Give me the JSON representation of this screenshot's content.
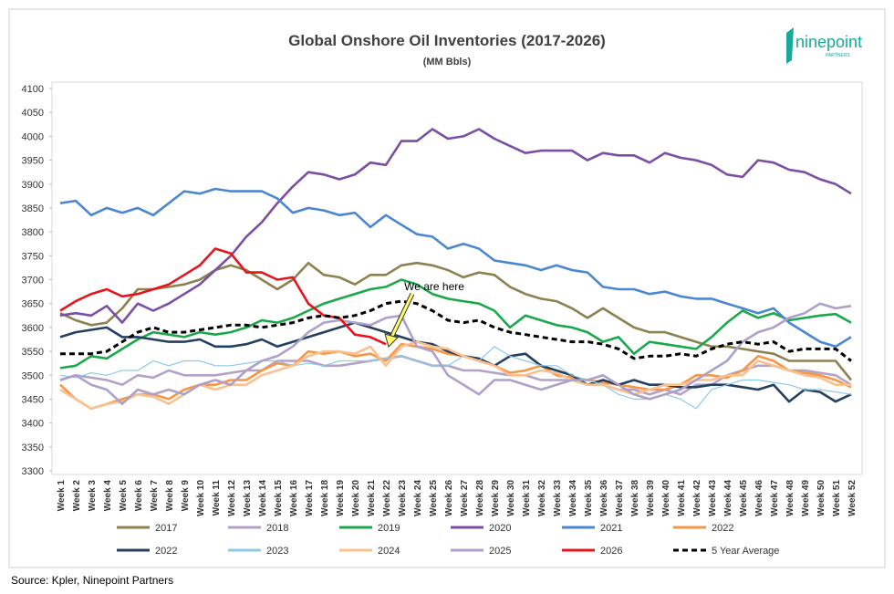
{
  "chart_data": {
    "type": "line",
    "title": "Global Onshore Oil Inventories (2017-2026)",
    "subtitle": "(MM Bbls)",
    "source": "Source: Kpler, Ninepoint Partners",
    "logo": {
      "name": "ninepoint",
      "tagline": "PARTNERS"
    },
    "annotations": [
      {
        "text": "We are here"
      }
    ],
    "grid": false,
    "legend": "bottom",
    "ylim": [
      3300,
      4100
    ],
    "yticks": [
      3300,
      3350,
      3400,
      3450,
      3500,
      3550,
      3600,
      3650,
      3700,
      3750,
      3800,
      3850,
      3900,
      3950,
      4000,
      4050,
      4100
    ],
    "categories": [
      "Week 1",
      "Week 2",
      "Week 3",
      "Week 4",
      "Week 5",
      "Week 6",
      "Week 7",
      "Week 8",
      "Week 9",
      "Week 10",
      "Week 11",
      "Week 12",
      "Week 13",
      "Week 14",
      "Week 15",
      "Week 16",
      "Week 17",
      "Week 18",
      "Week 19",
      "Week 20",
      "Week 21",
      "Week 22",
      "Week 23",
      "Week 24",
      "Week 25",
      "Week 26",
      "Week 27",
      "Week 28",
      "Week 29",
      "Week 30",
      "Week 31",
      "Week 32",
      "Week 33",
      "Week 34",
      "Week 35",
      "Week 36",
      "Week 37",
      "Week 38",
      "Week 39",
      "Week 40",
      "Week 41",
      "Week 42",
      "Week 43",
      "Week 44",
      "Week 45",
      "Week 46",
      "Week 47",
      "Week 48",
      "Week 49",
      "Week 50",
      "Week 51",
      "Week 52"
    ],
    "series": [
      {
        "name": "2017",
        "color": "#8c8250",
        "values": [
          3630,
          3615,
          3605,
          3610,
          3640,
          3680,
          3680,
          3685,
          3690,
          3700,
          3720,
          3730,
          3720,
          3700,
          3680,
          3700,
          3735,
          3710,
          3705,
          3690,
          3710,
          3710,
          3730,
          3735,
          3730,
          3720,
          3705,
          3715,
          3710,
          3685,
          3670,
          3660,
          3655,
          3640,
          3620,
          3640,
          3620,
          3600,
          3590,
          3590,
          3580,
          3570,
          3560,
          3560,
          3555,
          3550,
          3545,
          3530,
          3530,
          3530,
          3530,
          3490
        ]
      },
      {
        "name": "2018",
        "color": "#b3a2c7",
        "values": [
          3490,
          3500,
          3495,
          3490,
          3480,
          3500,
          3495,
          3510,
          3500,
          3500,
          3500,
          3505,
          3510,
          3510,
          3530,
          3530,
          3530,
          3520,
          3520,
          3525,
          3530,
          3535,
          3540,
          3530,
          3520,
          3520,
          3510,
          3510,
          3505,
          3500,
          3500,
          3490,
          3490,
          3490,
          3480,
          3480,
          3470,
          3470,
          3460,
          3470,
          3460,
          3480,
          3480,
          3500,
          3510,
          3520,
          3520,
          3510,
          3510,
          3505,
          3500,
          3480
        ]
      },
      {
        "name": "2019",
        "color": "#1aa84a",
        "values": [
          3515,
          3520,
          3540,
          3535,
          3555,
          3575,
          3590,
          3585,
          3580,
          3590,
          3585,
          3590,
          3600,
          3615,
          3610,
          3620,
          3635,
          3650,
          3660,
          3670,
          3680,
          3685,
          3700,
          3690,
          3670,
          3660,
          3655,
          3650,
          3635,
          3600,
          3625,
          3615,
          3605,
          3600,
          3590,
          3570,
          3580,
          3545,
          3570,
          3565,
          3560,
          3555,
          3580,
          3610,
          3635,
          3620,
          3630,
          3615,
          3620,
          3625,
          3628,
          3610
        ]
      },
      {
        "name": "2020",
        "color": "#7a4ea3",
        "values": [
          3625,
          3630,
          3625,
          3645,
          3610,
          3650,
          3635,
          3650,
          3670,
          3690,
          3720,
          3750,
          3790,
          3820,
          3860,
          3895,
          3925,
          3920,
          3910,
          3920,
          3945,
          3940,
          3990,
          3990,
          4015,
          3995,
          4000,
          4015,
          3995,
          3980,
          3965,
          3970,
          3970,
          3970,
          3950,
          3965,
          3960,
          3960,
          3945,
          3965,
          3955,
          3950,
          3940,
          3920,
          3915,
          3950,
          3945,
          3930,
          3925,
          3910,
          3900,
          3880
        ]
      },
      {
        "name": "2021",
        "color": "#4a87d0",
        "values": [
          3860,
          3865,
          3835,
          3850,
          3840,
          3850,
          3835,
          3860,
          3885,
          3880,
          3890,
          3885,
          3885,
          3885,
          3870,
          3840,
          3850,
          3845,
          3835,
          3840,
          3810,
          3835,
          3815,
          3795,
          3790,
          3765,
          3775,
          3765,
          3740,
          3735,
          3730,
          3720,
          3730,
          3720,
          3715,
          3685,
          3680,
          3680,
          3670,
          3675,
          3665,
          3660,
          3660,
          3650,
          3640,
          3630,
          3640,
          3610,
          3590,
          3570,
          3560,
          3580
        ]
      },
      {
        "name": "2022",
        "color": "#f79646",
        "values": [
          3480,
          3450,
          3430,
          3440,
          3450,
          3460,
          3460,
          3450,
          3470,
          3480,
          3480,
          3490,
          3490,
          3510,
          3525,
          3520,
          3550,
          3545,
          3550,
          3540,
          3545,
          3530,
          3565,
          3560,
          3555,
          3545,
          3540,
          3530,
          3520,
          3505,
          3510,
          3520,
          3500,
          3495,
          3490,
          3485,
          3480,
          3475,
          3470,
          3470,
          3480,
          3500,
          3500,
          3495,
          3510,
          3540,
          3530,
          3510,
          3505,
          3500,
          3490,
          3475
        ]
      },
      {
        "name": "2022",
        "color": "#243f60",
        "values": [
          3580,
          3590,
          3595,
          3600,
          3580,
          3580,
          3575,
          3570,
          3570,
          3575,
          3560,
          3560,
          3565,
          3575,
          3560,
          3570,
          3580,
          3590,
          3600,
          3610,
          3600,
          3590,
          3580,
          3570,
          3565,
          3550,
          3540,
          3535,
          3520,
          3540,
          3545,
          3520,
          3510,
          3500,
          3480,
          3490,
          3480,
          3490,
          3480,
          3480,
          3475,
          3475,
          3480,
          3480,
          3475,
          3470,
          3480,
          3445,
          3470,
          3465,
          3445,
          3460
        ]
      },
      {
        "name": "2023",
        "color": "#8ecae6",
        "values": [
          3500,
          3495,
          3505,
          3500,
          3510,
          3510,
          3530,
          3520,
          3530,
          3530,
          3520,
          3520,
          3525,
          3530,
          3530,
          3520,
          3525,
          3520,
          3530,
          3530,
          3530,
          3535,
          3540,
          3530,
          3520,
          3520,
          3540,
          3530,
          3560,
          3540,
          3530,
          3520,
          3520,
          3500,
          3490,
          3480,
          3460,
          3450,
          3450,
          3460,
          3450,
          3430,
          3470,
          3480,
          3490,
          3490,
          3485,
          3480,
          3470,
          3470,
          3465,
          3460
        ]
      },
      {
        "name": "2024",
        "color": "#fac090",
        "values": [
          3470,
          3450,
          3430,
          3440,
          3445,
          3460,
          3455,
          3440,
          3460,
          3480,
          3470,
          3480,
          3480,
          3500,
          3510,
          3520,
          3540,
          3550,
          3550,
          3545,
          3560,
          3520,
          3560,
          3570,
          3560,
          3555,
          3540,
          3530,
          3520,
          3500,
          3500,
          3510,
          3505,
          3490,
          3480,
          3480,
          3470,
          3460,
          3470,
          3480,
          3480,
          3490,
          3490,
          3500,
          3500,
          3530,
          3520,
          3510,
          3500,
          3495,
          3480,
          3480
        ]
      },
      {
        "name": "2025",
        "color": "#aea1c9",
        "values": [
          3490,
          3500,
          3480,
          3470,
          3440,
          3470,
          3460,
          3470,
          3460,
          3480,
          3490,
          3480,
          3510,
          3530,
          3540,
          3560,
          3590,
          3610,
          3615,
          3610,
          3605,
          3620,
          3625,
          3560,
          3550,
          3500,
          3480,
          3460,
          3490,
          3490,
          3480,
          3470,
          3480,
          3490,
          3490,
          3500,
          3480,
          3460,
          3450,
          3460,
          3470,
          3490,
          3510,
          3530,
          3570,
          3590,
          3600,
          3620,
          3630,
          3650,
          3640,
          3645
        ]
      },
      {
        "name": "2026",
        "color": "#e8141c",
        "values": [
          3635,
          3655,
          3670,
          3680,
          3665,
          3670,
          3680,
          3690,
          3710,
          3730,
          3765,
          3755,
          3715,
          3715,
          3700,
          3705,
          3650,
          3625,
          3620,
          3585,
          3580,
          3565,
          null,
          null,
          null,
          null,
          null,
          null,
          null,
          null,
          null,
          null,
          null,
          null,
          null,
          null,
          null,
          null,
          null,
          null,
          null,
          null,
          null,
          null,
          null,
          null,
          null,
          null,
          null,
          null,
          null,
          null
        ]
      },
      {
        "name": "5 Year Average",
        "color": "#000000",
        "dashed": true,
        "values": [
          3545,
          3545,
          3545,
          3550,
          3570,
          3590,
          3600,
          3590,
          3590,
          3595,
          3600,
          3605,
          3605,
          3600,
          3605,
          3610,
          3620,
          3625,
          3620,
          3625,
          3635,
          3650,
          3655,
          3650,
          3635,
          3615,
          3610,
          3615,
          3600,
          3590,
          3585,
          3580,
          3575,
          3570,
          3570,
          3565,
          3555,
          3535,
          3540,
          3540,
          3545,
          3540,
          3555,
          3565,
          3570,
          3565,
          3570,
          3550,
          3555,
          3555,
          3555,
          3530
        ]
      }
    ]
  }
}
